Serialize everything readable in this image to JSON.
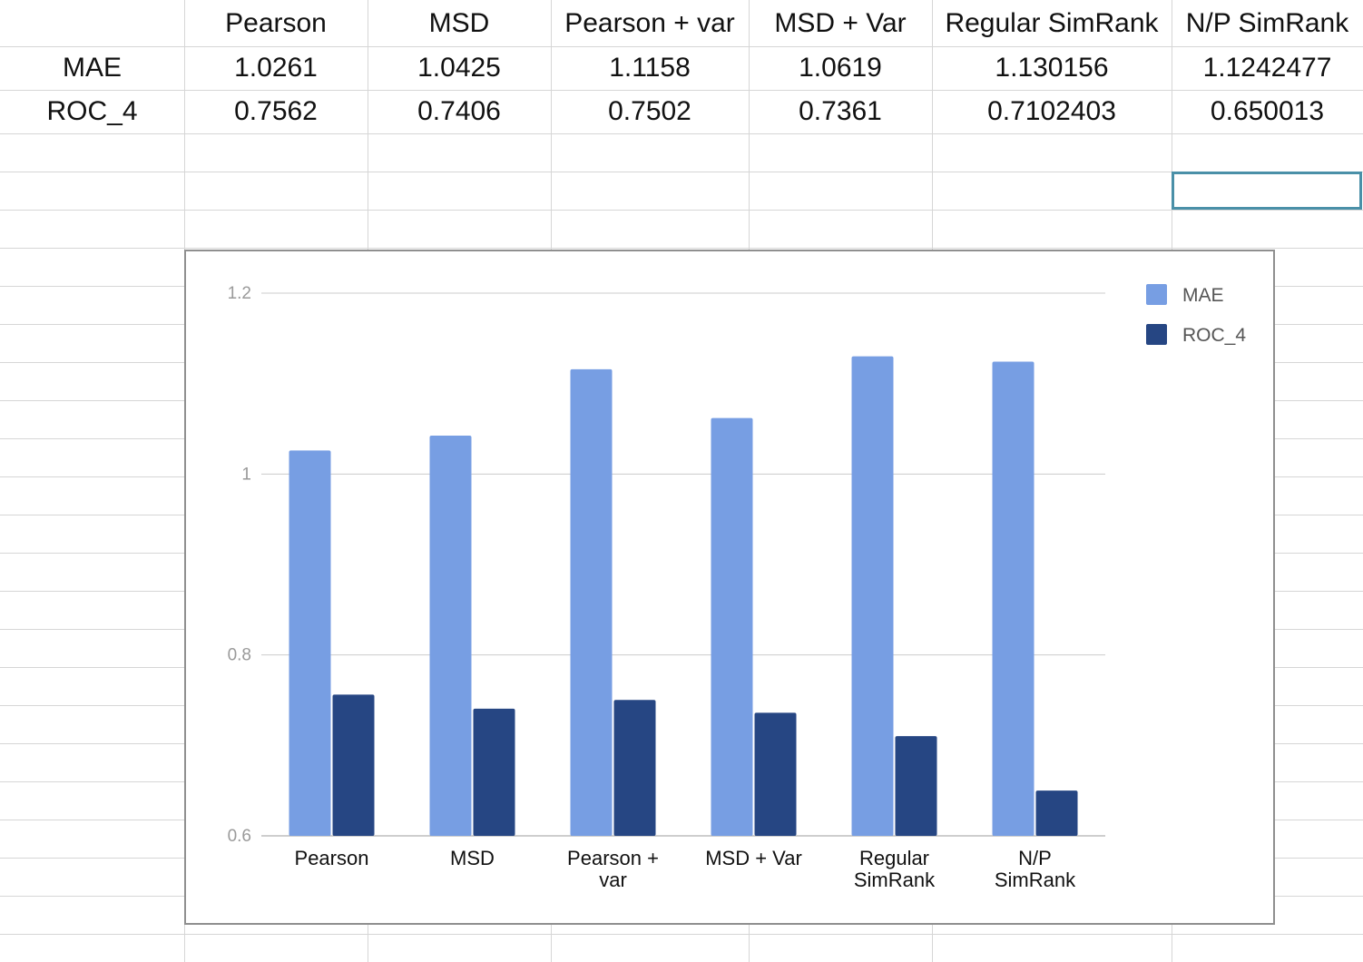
{
  "sheet": {
    "header": [
      "",
      "Pearson",
      "MSD",
      "Pearson + var",
      "MSD + Var",
      "Regular SimRank",
      "N/P SimRank"
    ],
    "rows": [
      [
        "MAE",
        "1.0261",
        "1.0425",
        "1.1158",
        "1.0619",
        "1.130156",
        "1.1242477"
      ],
      [
        "ROC_4",
        "0.7562",
        "0.7406",
        "0.7502",
        "0.7361",
        "0.7102403",
        "0.650013"
      ]
    ]
  },
  "chart_data": {
    "type": "bar",
    "categories": [
      [
        "Pearson"
      ],
      [
        "MSD"
      ],
      [
        "Pearson +",
        "var"
      ],
      [
        "MSD + Var"
      ],
      [
        "Regular",
        "SimRank"
      ],
      [
        "N/P",
        "SimRank"
      ]
    ],
    "series": [
      {
        "name": "MAE",
        "color": "#779ee3",
        "values": [
          1.0261,
          1.0425,
          1.1158,
          1.0619,
          1.130156,
          1.1242477
        ]
      },
      {
        "name": "ROC_4",
        "color": "#264683",
        "values": [
          0.7562,
          0.7406,
          0.7502,
          0.7361,
          0.7102403,
          0.650013
        ]
      }
    ],
    "ylim": [
      0.6,
      1.2
    ],
    "yticks": [
      {
        "value": 0.6,
        "label": "0.6"
      },
      {
        "value": 0.8,
        "label": "0.8"
      },
      {
        "value": 1.0,
        "label": "1"
      },
      {
        "value": 1.2,
        "label": "1.2"
      }
    ],
    "legend": "top-right",
    "grid": true,
    "title": "",
    "xlabel": "",
    "ylabel": ""
  }
}
